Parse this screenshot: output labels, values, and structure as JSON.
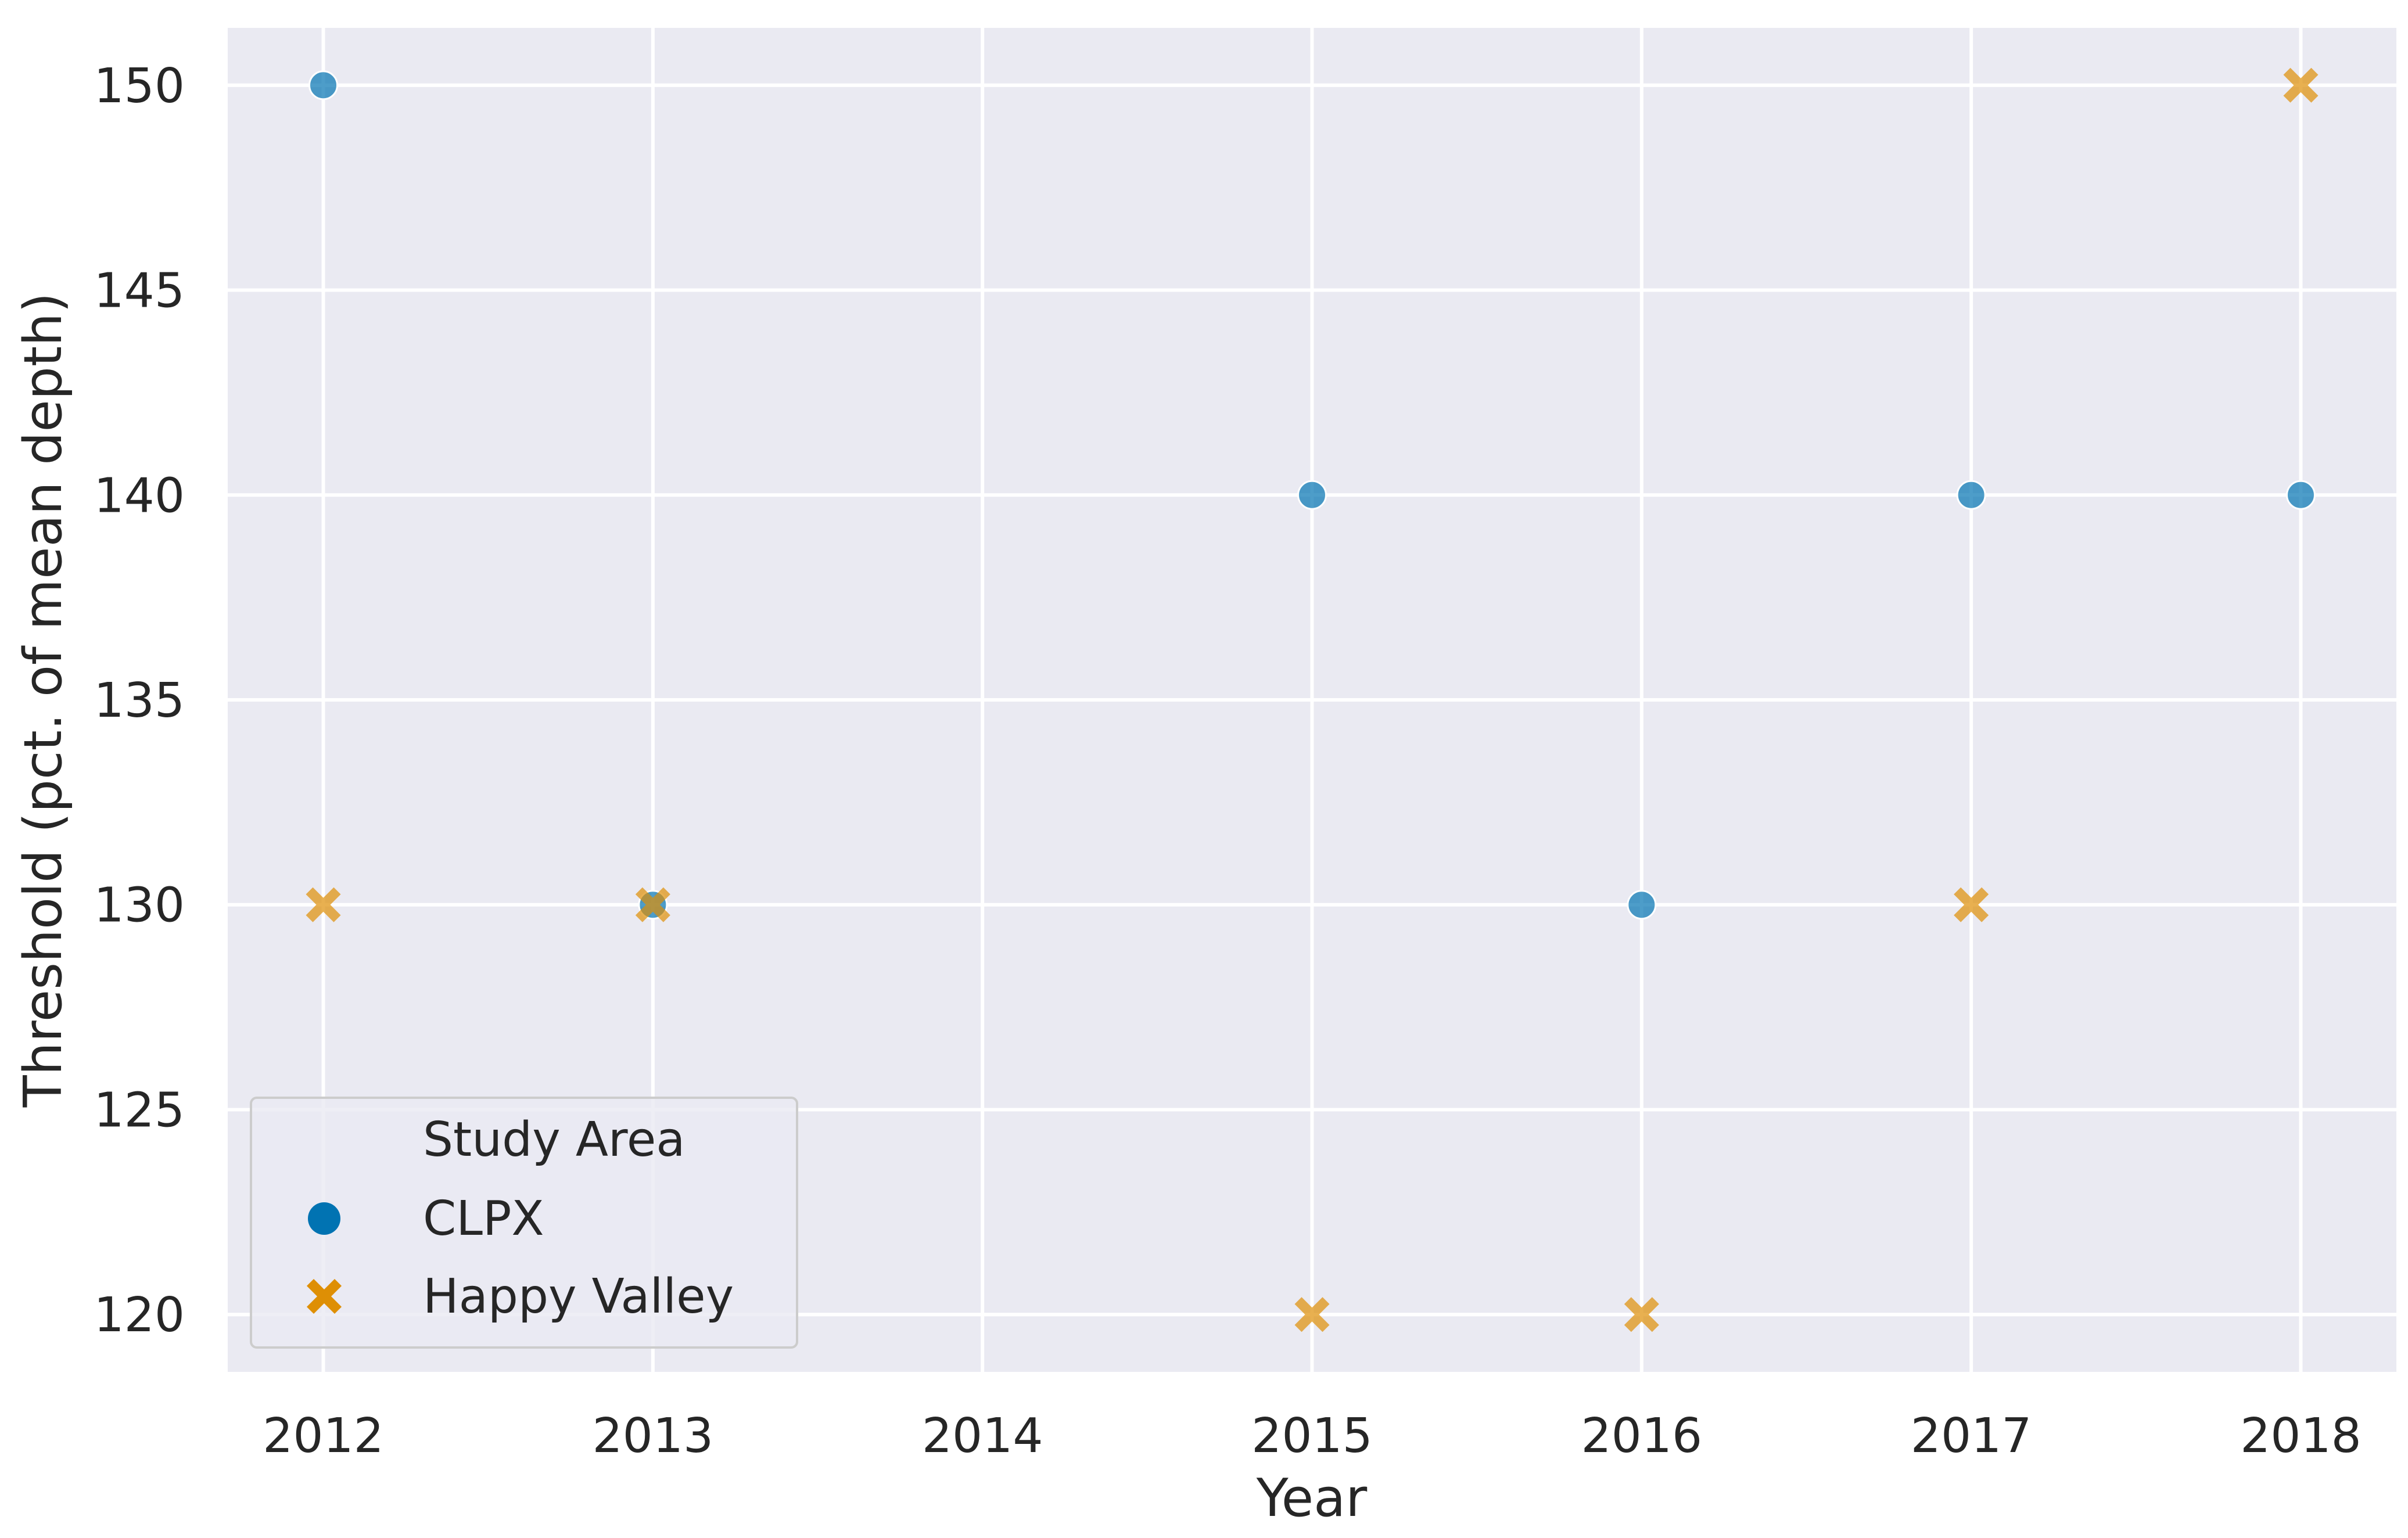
{
  "chart_data": {
    "type": "scatter",
    "title": "",
    "xlabel": "Year",
    "ylabel": "Threshold (pct. of mean depth)",
    "xlim": [
      2011.71,
      2018.29
    ],
    "ylim": [
      118.6,
      151.4
    ],
    "x_ticks": [
      2012,
      2013,
      2014,
      2015,
      2016,
      2017,
      2018
    ],
    "y_ticks": [
      120,
      125,
      130,
      135,
      140,
      145,
      150
    ],
    "grid": true,
    "legend": {
      "title": "Study Area",
      "placement": "lower-left",
      "entries": [
        "CLPX",
        "Happy Valley"
      ]
    },
    "series": [
      {
        "name": "CLPX",
        "marker": "circle",
        "color": "#0173b2",
        "points": [
          {
            "x": 2012,
            "y": 150
          },
          {
            "x": 2013,
            "y": 130
          },
          {
            "x": 2015,
            "y": 140
          },
          {
            "x": 2016,
            "y": 130
          },
          {
            "x": 2017,
            "y": 140
          },
          {
            "x": 2018,
            "y": 140
          }
        ]
      },
      {
        "name": "Happy Valley",
        "marker": "x",
        "color": "#de8f05",
        "points": [
          {
            "x": 2012,
            "y": 130
          },
          {
            "x": 2013,
            "y": 130
          },
          {
            "x": 2015,
            "y": 120
          },
          {
            "x": 2016,
            "y": 120
          },
          {
            "x": 2017,
            "y": 130
          },
          {
            "x": 2018,
            "y": 150
          }
        ]
      }
    ],
    "colors": {
      "plot_background": "#eaeaf2",
      "grid": "#ffffff",
      "text": "#262626"
    }
  }
}
